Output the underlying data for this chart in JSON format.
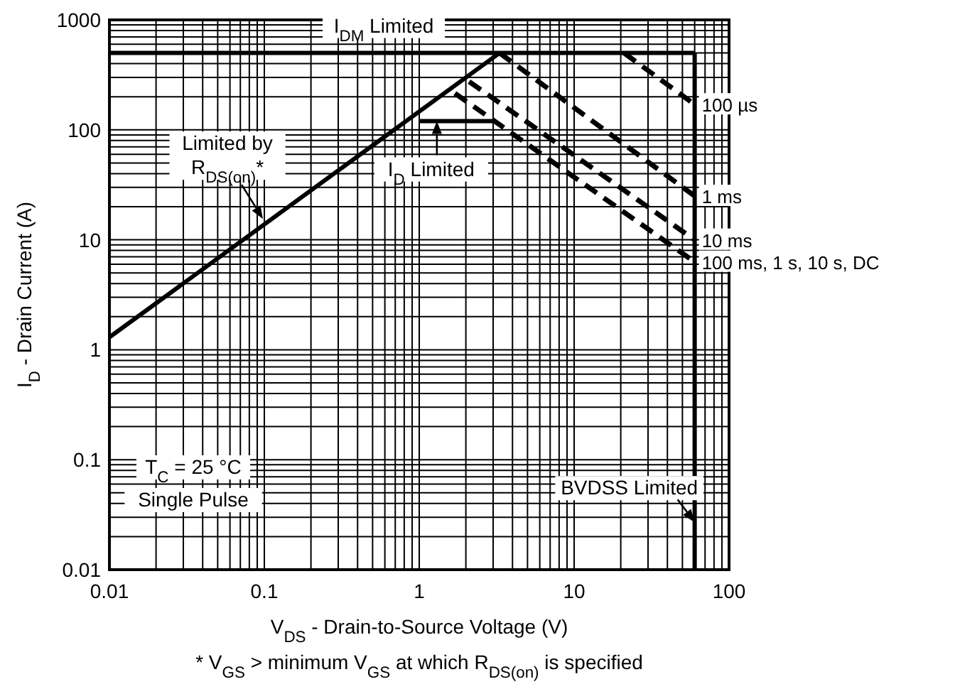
{
  "chart_data": {
    "type": "line",
    "xlabel": "V$_{DS}$ - Drain-to-Source Voltage (V)",
    "ylabel": "I$_{D}$ - Drain Current (A)",
    "log": "xy",
    "grid": true,
    "xlim": [
      0.01,
      100
    ],
    "ylim": [
      0.01,
      1000
    ],
    "xticks": [
      0.01,
      0.1,
      1,
      10,
      100
    ],
    "yticks": [
      0.01,
      0.1,
      1,
      10,
      100,
      1000
    ],
    "series": [
      {
        "color": "#000000",
        "line_style": "solid",
        "x": [
          0.01,
          3.3
        ],
        "values": [
          1.3,
          500
        ]
      },
      {
        "color": "#000000",
        "line_style": "solid",
        "x": [
          0.01,
          60
        ],
        "values": [
          500,
          500
        ]
      },
      {
        "color": "#000000",
        "line_style": "solid",
        "x": [
          1.0,
          3.0
        ],
        "values": [
          120,
          120
        ]
      },
      {
        "color": "#000000",
        "line_style": "solid",
        "x": [
          60,
          60
        ],
        "values": [
          500,
          0.01
        ]
      },
      {
        "name": "100 µs",
        "color": "#000000",
        "line_style": "dashed",
        "x": [
          21,
          60
        ],
        "values": [
          500,
          170
        ]
      },
      {
        "name": "1 ms",
        "color": "#000000",
        "line_style": "dashed",
        "x": [
          3.3,
          60
        ],
        "values": [
          500,
          25
        ]
      },
      {
        "name": "10 ms",
        "color": "#000000",
        "line_style": "dashed",
        "x": [
          2.1,
          60
        ],
        "values": [
          275,
          10
        ]
      },
      {
        "name": "100 ms, 1 s, 10 s, DC",
        "color": "#000000",
        "line_style": "dashed",
        "x": [
          1.7,
          60
        ],
        "values": [
          215,
          6.3
        ]
      }
    ],
    "annotations": [
      {
        "text": "I$_{DM}$ Limited",
        "x": 0.59,
        "y": 500
      },
      {
        "text": "Limited by R$_{DS(on)}$*",
        "x": 0.098,
        "y": 15.5
      },
      {
        "text": "I$_{D}$ Limited",
        "x": 1.3,
        "y": 120
      },
      {
        "text": "BVDSS Limited",
        "x": 60,
        "y": 0.027
      },
      "T$_{C}$ = 25 °C",
      "Single Pulse",
      "* V$_{GS}$ > minimum V$_{GS}$ at which R$_{DS(on)}$ is specified"
    ]
  }
}
